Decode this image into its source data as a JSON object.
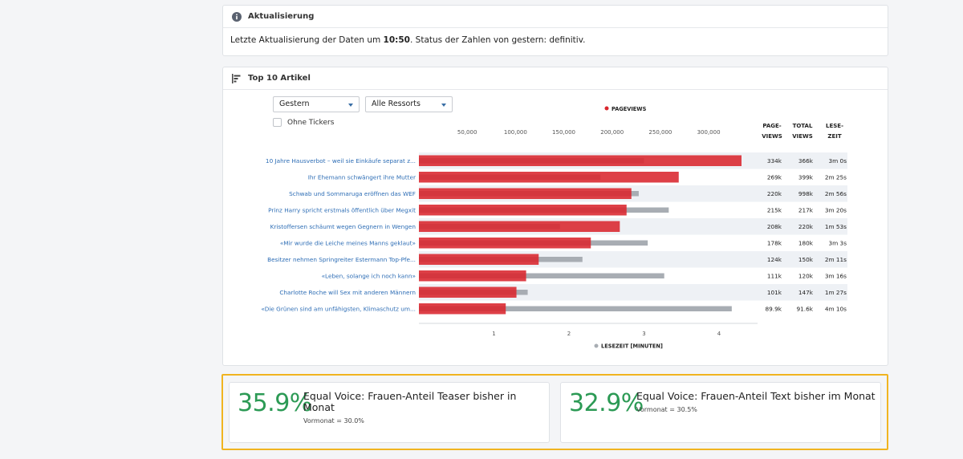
{
  "info": {
    "title": "Aktualisierung",
    "text_before": "Letzte Aktualisierung der Daten um ",
    "time": "10:50",
    "text_after": ". Status der Zahlen von gestern: definitiv."
  },
  "top10": {
    "title": "Top 10 Artikel",
    "filters": {
      "period": "Gestern",
      "section": "Alle Ressorts",
      "tickers_label": "Ohne Tickers"
    },
    "legend_top": "PAGEVIEWS",
    "legend_bottom": "LESEZEIT [MINUTEN]",
    "columns": [
      [
        "PAGE-",
        "VIEWS"
      ],
      [
        "TOTAL",
        "VIEWS"
      ],
      [
        "LESE-",
        "ZEIT"
      ]
    ],
    "colors": {
      "pageviews": "#d9262d",
      "lesezeit": "#a8adb3",
      "label": "#2d6db5"
    }
  },
  "chart_data": {
    "type": "bar",
    "x_top": {
      "label": "PAGEVIEWS",
      "ticks": [
        50000,
        100000,
        150000,
        200000,
        250000,
        300000
      ],
      "tick_labels": [
        "50,000",
        "100,000",
        "150,000",
        "200,000",
        "250,000",
        "300,000"
      ],
      "lim": [
        0,
        334000
      ]
    },
    "x_bottom": {
      "label": "LESEZEIT [MINUTEN]",
      "ticks": [
        1,
        2,
        3,
        4
      ],
      "tick_labels": [
        "1",
        "2",
        "3",
        "4"
      ],
      "lim": [
        0,
        4.3
      ]
    },
    "categories": [
      "10 Jahre Hausverbot – weil sie Einkäufe separat z...",
      "Ihr Ehemann schwängert ihre Mutter",
      "Schwab und Sommaruga eröffnen das WEF",
      "Prinz Harry spricht erstmals öffentlich über Megxit",
      "Kristoffersen schäumt wegen Gegnern in Wengen",
      "«Mir wurde die Leiche meines Manns geklaut»",
      "Besitzer nehmen Springreiter Estermann Top-Pfe...",
      "«Leben, solange ich noch kann»",
      "Charlotte Roche will Sex mit anderen Männern",
      "«Die Grünen sind am unfähigsten, Klimaschutz um..."
    ],
    "series": [
      {
        "name": "PAGEVIEWS",
        "values": [
          334000,
          269000,
          220000,
          215000,
          208000,
          178000,
          124000,
          111000,
          101000,
          89900
        ]
      },
      {
        "name": "LESEZEIT [MINUTEN]",
        "values": [
          3.0,
          2.42,
          2.93,
          3.33,
          1.88,
          3.05,
          2.18,
          3.27,
          1.45,
          4.17
        ]
      }
    ],
    "table": [
      [
        "334k",
        "366k",
        "3m 0s"
      ],
      [
        "269k",
        "399k",
        "2m 25s"
      ],
      [
        "220k",
        "998k",
        "2m 56s"
      ],
      [
        "215k",
        "217k",
        "3m 20s"
      ],
      [
        "208k",
        "220k",
        "1m 53s"
      ],
      [
        "178k",
        "180k",
        "3m 3s"
      ],
      [
        "124k",
        "150k",
        "2m 11s"
      ],
      [
        "111k",
        "120k",
        "3m 16s"
      ],
      [
        "101k",
        "147k",
        "1m 27s"
      ],
      [
        "89.9k",
        "91.6k",
        "4m 10s"
      ]
    ]
  },
  "kpis": [
    {
      "value": "35.9%",
      "title": "Equal Voice: Frauen-Anteil Teaser bisher in Monat",
      "sub": "Vormonat = 30.0%"
    },
    {
      "value": "32.9%",
      "title": "Equal Voice: Frauen-Anteil Text bisher im Monat",
      "sub": "Vormonat = 30.5%"
    }
  ]
}
